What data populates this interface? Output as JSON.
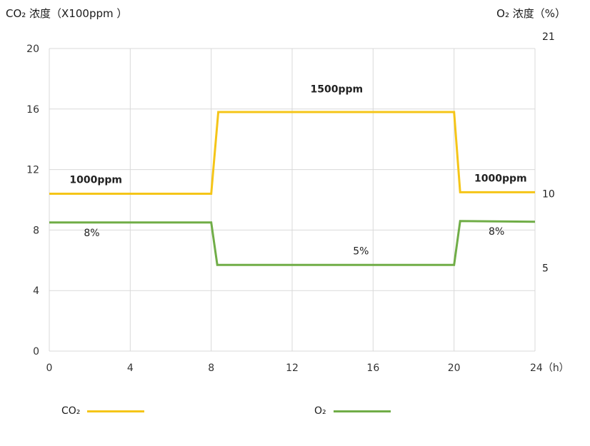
{
  "chart_data": {
    "type": "line",
    "left_axis_title": "CO₂ 浓度（X100ppm ）",
    "right_axis_title": "O₂ 浓度（%）",
    "x_ticks": [
      "0",
      "4",
      "8",
      "12",
      "16",
      "20",
      "24（h）"
    ],
    "x_range": [
      0,
      24
    ],
    "y_left_ticks": [
      "0",
      "4",
      "8",
      "12",
      "16",
      "20"
    ],
    "y_left_range": [
      0,
      20
    ],
    "y_right_ticks": [
      {
        "label": "21",
        "y": 20.8
      },
      {
        "label": "10",
        "y": 10.4
      },
      {
        "label": "5",
        "y": 5.5
      }
    ],
    "grid": true,
    "legend_position": "bottom",
    "series": [
      {
        "name": "CO₂",
        "color": "#F5C518",
        "x": [
          0,
          8,
          8.35,
          20,
          20.3,
          24
        ],
        "y": [
          10.4,
          10.4,
          15.8,
          15.8,
          10.5,
          10.5
        ]
      },
      {
        "name": "O₂",
        "color": "#70AD47",
        "x": [
          0,
          8,
          8.3,
          20,
          20.3,
          24
        ],
        "y": [
          8.5,
          8.5,
          5.7,
          5.7,
          8.6,
          8.55
        ]
      }
    ],
    "annotations": [
      {
        "text": "1000ppm",
        "x": 2.3,
        "y": 11.1,
        "bold": true
      },
      {
        "text": "1500ppm",
        "x": 14.2,
        "y": 17.1,
        "bold": true
      },
      {
        "text": "1000ppm",
        "x": 22.3,
        "y": 11.2,
        "bold": true
      },
      {
        "text": "8%",
        "x": 2.1,
        "y": 7.6,
        "bold": false
      },
      {
        "text": "5%",
        "x": 15.4,
        "y": 6.4,
        "bold": false
      },
      {
        "text": "8%",
        "x": 22.1,
        "y": 7.7,
        "bold": false
      }
    ]
  }
}
